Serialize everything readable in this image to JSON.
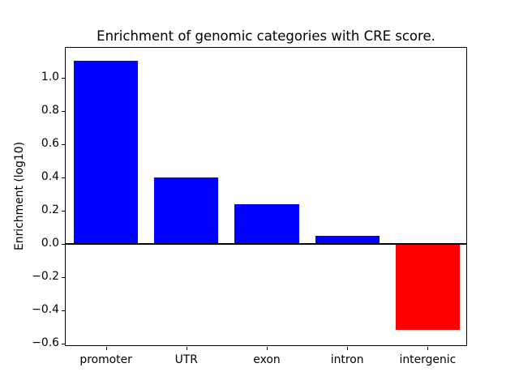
{
  "figure": {
    "title": "Enrichment of genomic categories with CRE score.",
    "ylabel": "Enrichment (log10)"
  },
  "chart_data": {
    "type": "bar",
    "title": "Enrichment of genomic categories with CRE score.",
    "xlabel": "",
    "ylabel": "Enrichment (log10)",
    "categories": [
      "promoter",
      "UTR",
      "exon",
      "intron",
      "intergenic"
    ],
    "values": [
      1.1,
      0.4,
      0.24,
      0.05,
      -0.52
    ],
    "bar_colors": [
      "#0000ff",
      "#0000ff",
      "#0000ff",
      "#0000ff",
      "#ff0000"
    ],
    "positive_color": "#0000ff",
    "negative_color": "#ff0000",
    "baseline_value": 0,
    "baseline_color": "#000000",
    "ylim": [
      -0.62,
      1.18
    ],
    "yticks": [
      {
        "value": -0.6,
        "label": "−0.6"
      },
      {
        "value": -0.4,
        "label": "−0.4"
      },
      {
        "value": -0.2,
        "label": "−0.2"
      },
      {
        "value": 0.0,
        "label": "0.0"
      },
      {
        "value": 0.2,
        "label": "0.2"
      },
      {
        "value": 0.4,
        "label": "0.4"
      },
      {
        "value": 0.6,
        "label": "0.6"
      },
      {
        "value": 0.8,
        "label": "0.8"
      },
      {
        "value": 1.0,
        "label": "1.0"
      }
    ],
    "grid": false,
    "legend": null
  }
}
